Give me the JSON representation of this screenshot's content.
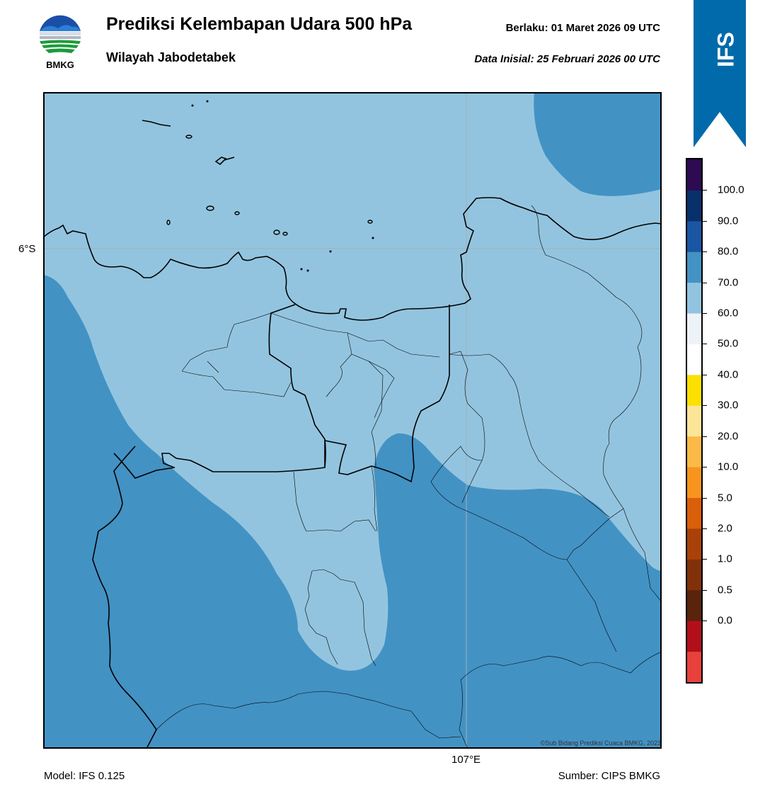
{
  "header": {
    "title": "Prediksi Kelembapan Udara 500 hPa",
    "subtitle": "Wilayah Jabodetabek",
    "valid_time": "Berlaku:  01 Maret 2026 09 UTC",
    "init_time": "Data Inisial:  25 Februari 2026 00 UTC"
  },
  "logo": {
    "text": "BMKG",
    "icon": "bmkg-logo"
  },
  "badge": {
    "text": "IFS",
    "color": "#006aaa"
  },
  "map": {
    "lat_label": "6°S",
    "lon_label": "107°E",
    "copyright": "©Sub Bidang Prediksi Cuaca BMKG, 2023",
    "fill_colors": {
      "band_60_70": "#93c4df",
      "band_70_80": "#4392c4"
    }
  },
  "colorbar": {
    "ticks": [
      "100.0",
      "90.0",
      "80.0",
      "70.0",
      "60.0",
      "50.0",
      "40.0",
      "30.0",
      "20.0",
      "10.0",
      "5.0",
      "2.0",
      "1.0",
      "0.5",
      "0.0"
    ],
    "colors": [
      "#e8413c",
      "#b20f1a",
      "#5a230c",
      "#81310a",
      "#a94109",
      "#d95f0a",
      "#f7941d",
      "#fbba47",
      "#fde598",
      "#fee000",
      "#ffffff",
      "#edf3f9",
      "#93c4df",
      "#4392c4",
      "#1a56a3",
      "#08306b",
      "#2d0a51"
    ]
  },
  "footer": {
    "model": "Model: IFS 0.125",
    "source": "Sumber: CIPS BMKG"
  }
}
